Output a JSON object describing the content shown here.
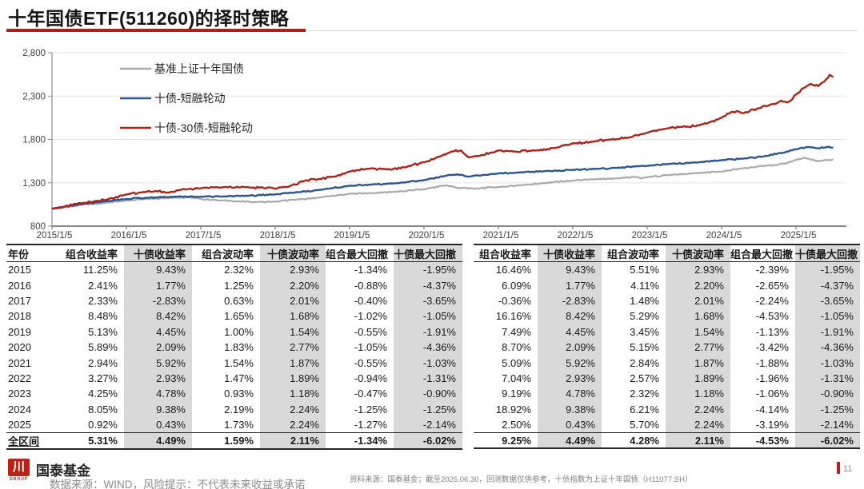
{
  "page": {
    "title": "十年国债ETF(511260)的择时策略"
  },
  "colors": {
    "accent_red": "#b01f16",
    "line_blue": "#2b5591",
    "line_gray": "#a9a9a9",
    "shaded_column": "#d9d9d9"
  },
  "chart_data": {
    "type": "line",
    "title": "",
    "ylim": [
      800,
      2800
    ],
    "yticks": [
      800,
      1300,
      1800,
      2300,
      2800
    ],
    "ytick_labels": [
      "800",
      "1,300",
      "1,800",
      "2,300",
      "2,800"
    ],
    "xtick_labels": [
      "2015/1/5",
      "2016/1/5",
      "2017/1/5",
      "2018/1/5",
      "2019/1/5",
      "2020/1/5",
      "2021/1/5",
      "2022/1/5",
      "2023/1/5",
      "2024/1/5",
      "2025/1/5"
    ],
    "x_range_years": [
      2015,
      2025.5
    ],
    "grid": "horizontal-light",
    "legend_position": "upper-left-inside",
    "series": [
      {
        "name": "基准上证十年国债",
        "color": "#a9a9a9",
        "points": [
          [
            2015,
            1000
          ],
          [
            2015.2,
            1022
          ],
          [
            2015.45,
            1050
          ],
          [
            2015.7,
            1068
          ],
          [
            2016,
            1094
          ],
          [
            2016.3,
            1115
          ],
          [
            2016.6,
            1126
          ],
          [
            2016.85,
            1132
          ],
          [
            2017,
            1113
          ],
          [
            2017.25,
            1095
          ],
          [
            2017.5,
            1085
          ],
          [
            2017.75,
            1078
          ],
          [
            2018,
            1082
          ],
          [
            2018.3,
            1108
          ],
          [
            2018.6,
            1130
          ],
          [
            2019,
            1173
          ],
          [
            2019.3,
            1180
          ],
          [
            2019.6,
            1196
          ],
          [
            2020,
            1225
          ],
          [
            2020.3,
            1272
          ],
          [
            2020.45,
            1240
          ],
          [
            2020.7,
            1232
          ],
          [
            2021,
            1251
          ],
          [
            2021.3,
            1272
          ],
          [
            2021.6,
            1295
          ],
          [
            2022,
            1325
          ],
          [
            2022.3,
            1340
          ],
          [
            2022.6,
            1352
          ],
          [
            2022.85,
            1368
          ],
          [
            2022.93,
            1350
          ],
          [
            2023,
            1364
          ],
          [
            2023.3,
            1390
          ],
          [
            2023.6,
            1408
          ],
          [
            2024,
            1429
          ],
          [
            2024.25,
            1462
          ],
          [
            2024.5,
            1490
          ],
          [
            2024.75,
            1505
          ],
          [
            2024.9,
            1535
          ],
          [
            2025,
            1563
          ],
          [
            2025.12,
            1588
          ],
          [
            2025.3,
            1548
          ],
          [
            2025.42,
            1562
          ],
          [
            2025.5,
            1570
          ]
        ]
      },
      {
        "name": "十债-短融轮动",
        "color": "#2b5591",
        "points": [
          [
            2015,
            1000
          ],
          [
            2015.2,
            1030
          ],
          [
            2015.45,
            1062
          ],
          [
            2015.7,
            1085
          ],
          [
            2016,
            1113
          ],
          [
            2016.3,
            1128
          ],
          [
            2016.6,
            1138
          ],
          [
            2016.9,
            1142
          ],
          [
            2017,
            1139
          ],
          [
            2017.3,
            1142
          ],
          [
            2017.6,
            1150
          ],
          [
            2018,
            1166
          ],
          [
            2018.3,
            1192
          ],
          [
            2018.6,
            1218
          ],
          [
            2019,
            1265
          ],
          [
            2019.3,
            1280
          ],
          [
            2019.6,
            1292
          ],
          [
            2020,
            1330
          ],
          [
            2020.3,
            1382
          ],
          [
            2020.45,
            1398
          ],
          [
            2020.6,
            1372
          ],
          [
            2021,
            1408
          ],
          [
            2021.3,
            1420
          ],
          [
            2021.6,
            1432
          ],
          [
            2022,
            1449
          ],
          [
            2022.3,
            1460
          ],
          [
            2022.6,
            1472
          ],
          [
            2022.9,
            1492
          ],
          [
            2023,
            1497
          ],
          [
            2023.3,
            1518
          ],
          [
            2023.6,
            1532
          ],
          [
            2024,
            1560
          ],
          [
            2024.3,
            1580
          ],
          [
            2024.6,
            1610
          ],
          [
            2024.85,
            1650
          ],
          [
            2025,
            1686
          ],
          [
            2025.15,
            1712
          ],
          [
            2025.3,
            1698
          ],
          [
            2025.42,
            1712
          ],
          [
            2025.5,
            1705
          ]
        ]
      },
      {
        "name": "十债-30债-短融轮动",
        "color": "#aa2317",
        "points": [
          [
            2015,
            1000
          ],
          [
            2015.15,
            1020
          ],
          [
            2015.35,
            1062
          ],
          [
            2015.55,
            1080
          ],
          [
            2015.75,
            1110
          ],
          [
            2016,
            1165
          ],
          [
            2016.2,
            1188
          ],
          [
            2016.4,
            1205
          ],
          [
            2016.55,
            1188
          ],
          [
            2016.75,
            1225
          ],
          [
            2017,
            1236
          ],
          [
            2017.3,
            1248
          ],
          [
            2017.6,
            1250
          ],
          [
            2017.85,
            1240
          ],
          [
            2018,
            1231
          ],
          [
            2018.2,
            1262
          ],
          [
            2018.4,
            1325
          ],
          [
            2018.6,
            1345
          ],
          [
            2018.8,
            1372
          ],
          [
            2019,
            1430
          ],
          [
            2019.25,
            1462
          ],
          [
            2019.5,
            1455
          ],
          [
            2019.75,
            1478
          ],
          [
            2020,
            1537
          ],
          [
            2020.2,
            1600
          ],
          [
            2020.38,
            1662
          ],
          [
            2020.5,
            1672
          ],
          [
            2020.6,
            1592
          ],
          [
            2020.75,
            1612
          ],
          [
            2021,
            1671
          ],
          [
            2021.2,
            1662
          ],
          [
            2021.5,
            1672
          ],
          [
            2021.75,
            1700
          ],
          [
            2022,
            1756
          ],
          [
            2022.25,
            1772
          ],
          [
            2022.5,
            1800
          ],
          [
            2022.75,
            1822
          ],
          [
            2022.9,
            1855
          ],
          [
            2023,
            1879
          ],
          [
            2023.2,
            1915
          ],
          [
            2023.45,
            1945
          ],
          [
            2023.7,
            1962
          ],
          [
            2023.85,
            2000
          ],
          [
            2024,
            2052
          ],
          [
            2024.15,
            2120
          ],
          [
            2024.3,
            2105
          ],
          [
            2024.5,
            2160
          ],
          [
            2024.65,
            2200
          ],
          [
            2024.8,
            2248
          ],
          [
            2024.9,
            2232
          ],
          [
            2025,
            2320
          ],
          [
            2025.1,
            2392
          ],
          [
            2025.2,
            2440
          ],
          [
            2025.3,
            2415
          ],
          [
            2025.38,
            2465
          ],
          [
            2025.45,
            2545
          ],
          [
            2025.5,
            2520
          ]
        ]
      }
    ]
  },
  "tables": {
    "left": {
      "headers": [
        "年份",
        "组合收益率",
        "十债收益率",
        "组合波动率",
        "十债波动率",
        "组合最大回撤",
        "十债最大回撤"
      ],
      "shaded_columns": [
        2,
        4,
        6
      ],
      "has_year_column": true,
      "rows": [
        [
          "2015",
          "11.25%",
          "9.43%",
          "2.32%",
          "2.93%",
          "-1.34%",
          "-1.95%"
        ],
        [
          "2016",
          "2.41%",
          "1.77%",
          "1.25%",
          "2.20%",
          "-0.88%",
          "-4.37%"
        ],
        [
          "2017",
          "2.33%",
          "-2.83%",
          "0.63%",
          "2.01%",
          "-0.40%",
          "-3.65%"
        ],
        [
          "2018",
          "8.48%",
          "8.42%",
          "1.65%",
          "1.68%",
          "-1.02%",
          "-1.05%"
        ],
        [
          "2019",
          "5.13%",
          "4.45%",
          "1.00%",
          "1.54%",
          "-0.55%",
          "-1.91%"
        ],
        [
          "2020",
          "5.89%",
          "2.09%",
          "1.83%",
          "2.77%",
          "-1.05%",
          "-4.36%"
        ],
        [
          "2021",
          "2.94%",
          "5.92%",
          "1.54%",
          "1.87%",
          "-0.55%",
          "-1.03%"
        ],
        [
          "2022",
          "3.27%",
          "2.93%",
          "1.47%",
          "1.89%",
          "-0.94%",
          "-1.31%"
        ],
        [
          "2023",
          "4.25%",
          "4.78%",
          "0.93%",
          "1.18%",
          "-0.47%",
          "-0.90%"
        ],
        [
          "2024",
          "8.05%",
          "9.38%",
          "2.19%",
          "2.24%",
          "-1.25%",
          "-1.25%"
        ],
        [
          "2025",
          "0.92%",
          "0.43%",
          "1.73%",
          "2.24%",
          "-1.27%",
          "-2.14%"
        ]
      ],
      "total_row": [
        "全区间",
        "5.31%",
        "4.49%",
        "1.59%",
        "2.11%",
        "-1.34%",
        "-6.02%"
      ]
    },
    "right": {
      "headers": [
        "组合收益率",
        "十债收益率",
        "组合波动率",
        "十债波动率",
        "组合最大回撤",
        "十债最大回撤"
      ],
      "shaded_columns": [
        1,
        3,
        5
      ],
      "has_year_column": false,
      "rows": [
        [
          "16.46%",
          "9.43%",
          "5.51%",
          "2.93%",
          "-2.39%",
          "-1.95%"
        ],
        [
          "6.09%",
          "1.77%",
          "4.11%",
          "2.20%",
          "-2.65%",
          "-4.37%"
        ],
        [
          "-0.36%",
          "-2.83%",
          "1.48%",
          "2.01%",
          "-2.24%",
          "-3.65%"
        ],
        [
          "16.16%",
          "8.42%",
          "5.29%",
          "1.68%",
          "-4.53%",
          "-1.05%"
        ],
        [
          "7.49%",
          "4.45%",
          "3.45%",
          "1.54%",
          "-1.13%",
          "-1.91%"
        ],
        [
          "8.70%",
          "2.09%",
          "5.15%",
          "2.77%",
          "-3.42%",
          "-4.36%"
        ],
        [
          "5.09%",
          "5.92%",
          "2.84%",
          "1.87%",
          "-1.88%",
          "-1.03%"
        ],
        [
          "7.04%",
          "2.93%",
          "2.57%",
          "1.89%",
          "-1.96%",
          "-1.31%"
        ],
        [
          "9.19%",
          "4.78%",
          "2.32%",
          "1.18%",
          "-1.06%",
          "-0.90%"
        ],
        [
          "18.92%",
          "9.38%",
          "6.21%",
          "2.24%",
          "-4.14%",
          "-1.25%"
        ],
        [
          "2.50%",
          "0.43%",
          "5.70%",
          "2.24%",
          "-3.19%",
          "-2.14%"
        ]
      ],
      "total_row": [
        "9.25%",
        "4.49%",
        "4.28%",
        "2.11%",
        "-4.53%",
        "-6.02%"
      ]
    }
  },
  "footer": {
    "logo_glyph": "川",
    "logo_group": "GROUP",
    "company_name": "国泰基金",
    "disclaimer": "数据来源：WIND，风险提示：不代表未来收益或承诺",
    "source_note": "资料来源：国泰基金；截至2025.06.30，回测数据仅供参考，十债指数为上证十年国债（H11077.SH）",
    "page_number": "11"
  }
}
